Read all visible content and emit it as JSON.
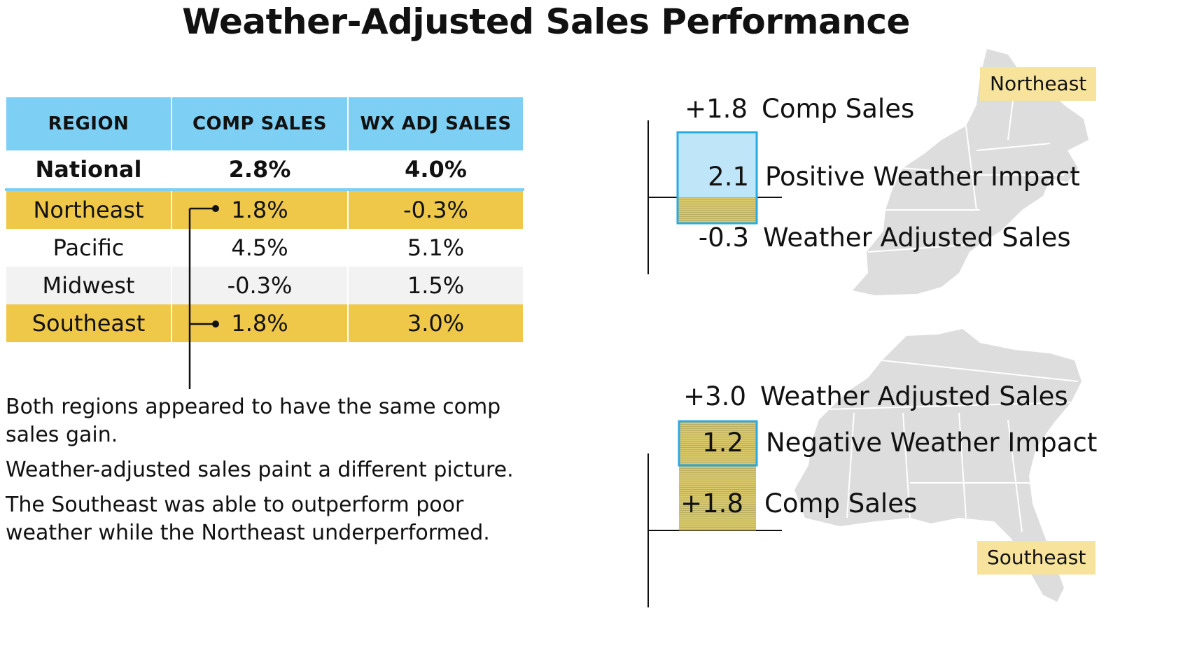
{
  "title": "Weather-Adjusted Sales Performance",
  "colors": {
    "header": "#7dcff4",
    "highlight": "#efc84a",
    "badge": "#f7e39c",
    "positive_box_fill": "#bfe6f8",
    "positive_box_border": "#2aaae2",
    "olive_fill": "#cfc06a",
    "map_fill": "#dddddd"
  },
  "table": {
    "headers": [
      "REGION",
      "COMP SALES",
      "WX ADJ SALES"
    ],
    "national": {
      "region": "National",
      "comp": "2.8%",
      "wx": "4.0%"
    },
    "rows": [
      {
        "region": "Northeast",
        "comp": "1.8%",
        "wx": "-0.3%",
        "style": "highlight"
      },
      {
        "region": "Pacific",
        "comp": "4.5%",
        "wx": "5.1%",
        "style": "plain"
      },
      {
        "region": "Midwest",
        "comp": "-0.3%",
        "wx": "1.5%",
        "style": "shaded"
      },
      {
        "region": "Southeast",
        "comp": "1.8%",
        "wx": "3.0%",
        "style": "highlight"
      }
    ]
  },
  "notes": [
    "Both regions appeared to have the same comp sales gain.",
    "Weather-adjusted sales paint a different picture.",
    "The Southeast was able to outperform poor weather while the Northeast underperformed."
  ],
  "northeast": {
    "badge": "Northeast",
    "comp_value": "+1.8",
    "comp_label": "Comp Sales",
    "impact_value": "2.1",
    "impact_label": "Positive Weather Impact",
    "adj_value": "-0.3",
    "adj_label": "Weather Adjusted Sales"
  },
  "southeast": {
    "badge": "Southeast",
    "adj_value": "+3.0",
    "adj_label": "Weather Adjusted Sales",
    "impact_value": "1.2",
    "impact_label": "Negative Weather Impact",
    "comp_value": "+1.8",
    "comp_label": "Comp Sales"
  },
  "chart_data": [
    {
      "type": "table",
      "columns": [
        "REGION",
        "COMP SALES",
        "WX ADJ SALES"
      ],
      "rows": [
        [
          "National",
          "2.8%",
          "4.0%"
        ],
        [
          "Northeast",
          "1.8%",
          "-0.3%"
        ],
        [
          "Pacific",
          "4.5%",
          "5.1%"
        ],
        [
          "Midwest",
          "-0.3%",
          "1.5%"
        ],
        [
          "Southeast",
          "1.8%",
          "3.0%"
        ]
      ]
    },
    {
      "type": "bar",
      "region": "Northeast",
      "comp_sales": 1.8,
      "weather_impact": 2.1,
      "weather_adjusted_sales": -0.3
    },
    {
      "type": "bar",
      "region": "Southeast",
      "comp_sales": 1.8,
      "weather_impact": 1.2,
      "weather_adjusted_sales": 3.0
    }
  ]
}
